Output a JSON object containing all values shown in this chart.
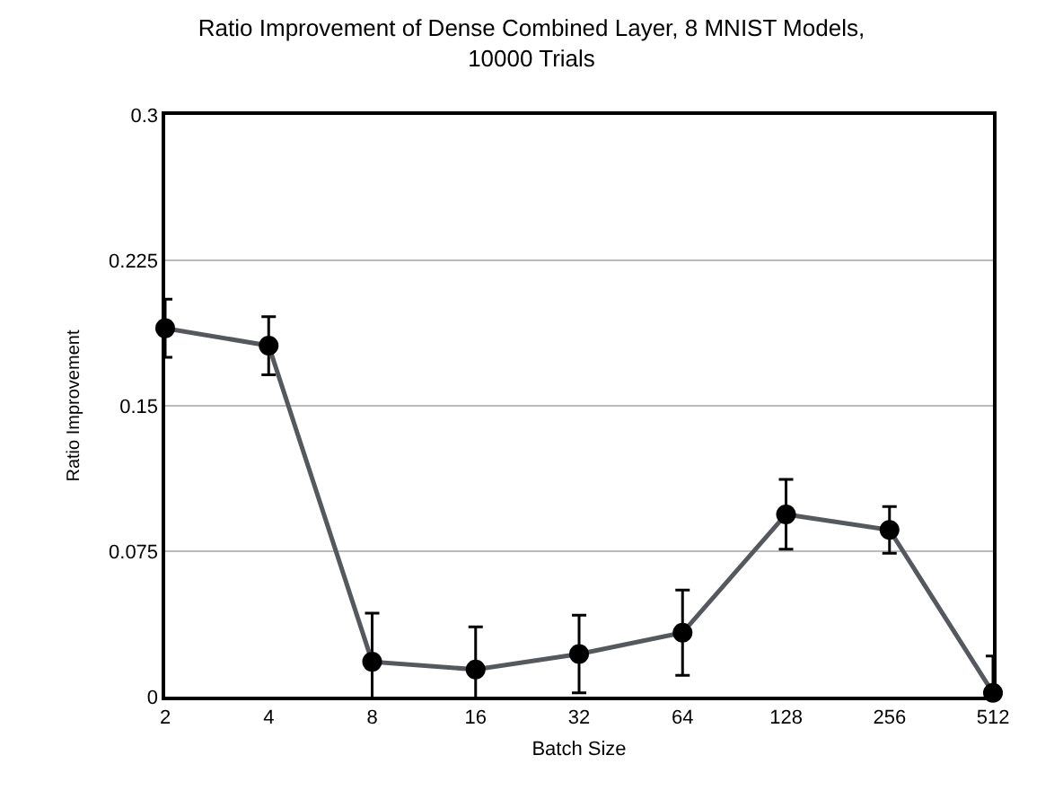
{
  "chart_data": {
    "type": "line",
    "title": "Ratio Improvement of Dense Combined Layer, 8 MNIST Models,\n10000 Trials",
    "xlabel": "Batch Size",
    "ylabel": "Ratio Improvement",
    "categories": [
      "2",
      "4",
      "8",
      "16",
      "32",
      "64",
      "128",
      "256",
      "512"
    ],
    "series": [
      {
        "color": "#55585d",
        "values": [
          0.19,
          0.181,
          0.018,
          0.014,
          0.022,
          0.033,
          0.094,
          0.086,
          0.002
        ],
        "errors": [
          0.015,
          0.015,
          0.025,
          0.022,
          0.02,
          0.022,
          0.018,
          0.012,
          0.019
        ]
      }
    ],
    "ylim": [
      0,
      0.3
    ],
    "yticks": [
      0,
      0.075,
      0.15,
      0.225,
      0.3
    ],
    "grid": "y",
    "marker": "circle",
    "line_style": "solid"
  }
}
